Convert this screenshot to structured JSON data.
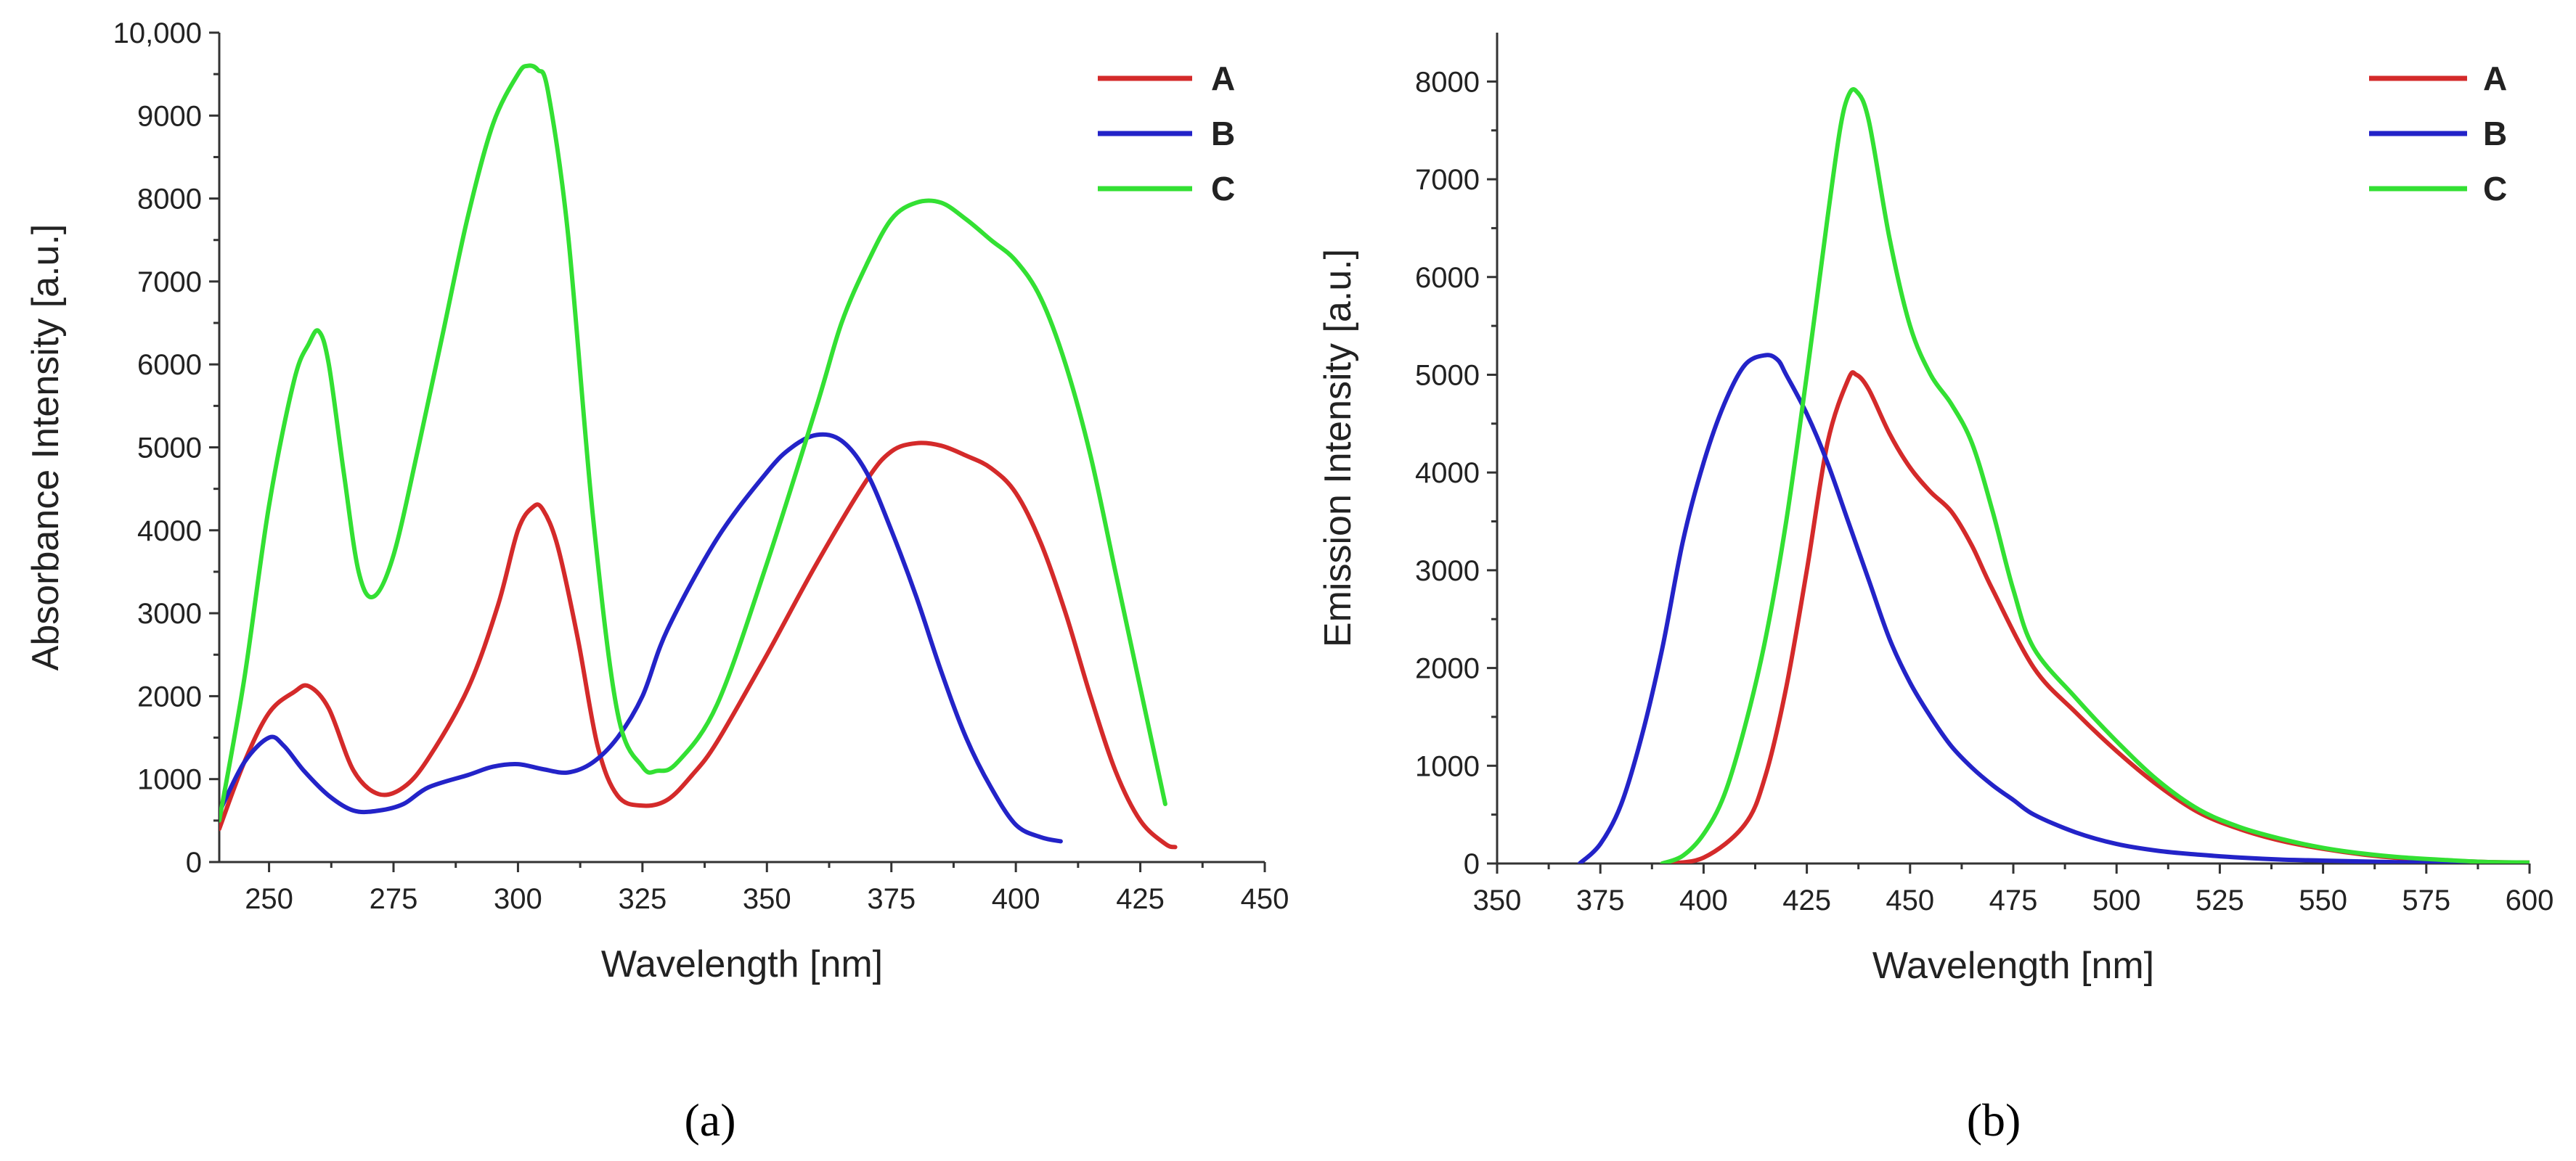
{
  "colors": {
    "A": "#d42a2a",
    "B": "#2323c8",
    "C": "#33e033",
    "axis": "#333333"
  },
  "chart_data": [
    {
      "type": "line",
      "panel": "(a)",
      "xlabel": "Wavelength [nm]",
      "ylabel": "Absorbance Intensity [a.u.]",
      "xlim": [
        240,
        450
      ],
      "ylim": [
        0,
        10000
      ],
      "xticks": [
        250,
        275,
        300,
        325,
        350,
        375,
        400,
        425,
        450
      ],
      "yticks": [
        0,
        1000,
        2000,
        3000,
        4000,
        5000,
        6000,
        7000,
        8000,
        9000,
        10000
      ],
      "ytick_labels": [
        "0",
        "1000",
        "2000",
        "3000",
        "4000",
        "5000",
        "6000",
        "7000",
        "8000",
        "9000",
        "10,000"
      ],
      "legend_position": "top-right",
      "series": [
        {
          "name": "A",
          "color": "#d42a2a",
          "x": [
            240,
            245,
            250,
            255,
            258,
            262,
            267,
            272,
            277,
            282,
            290,
            296,
            300,
            303,
            305,
            308,
            312,
            316,
            320,
            325,
            330,
            335,
            340,
            350,
            360,
            370,
            375,
            380,
            385,
            390,
            395,
            400,
            405,
            410,
            415,
            420,
            425,
            430,
            432
          ],
          "y": [
            400,
            1200,
            1800,
            2050,
            2120,
            1850,
            1100,
            820,
            900,
            1250,
            2100,
            3100,
            4000,
            4280,
            4250,
            3800,
            2700,
            1400,
            800,
            680,
            750,
            1050,
            1450,
            2500,
            3600,
            4600,
            4950,
            5050,
            5020,
            4900,
            4750,
            4450,
            3850,
            3000,
            2000,
            1100,
            500,
            220,
            180
          ]
        },
        {
          "name": "B",
          "color": "#2323c8",
          "x": [
            240,
            245,
            250,
            253,
            257,
            262,
            267,
            272,
            277,
            282,
            290,
            295,
            300,
            305,
            310,
            315,
            320,
            325,
            330,
            340,
            350,
            355,
            360,
            365,
            370,
            375,
            380,
            385,
            390,
            395,
            400,
            405,
            409
          ],
          "y": [
            600,
            1200,
            1500,
            1400,
            1100,
            800,
            620,
            620,
            700,
            900,
            1050,
            1150,
            1180,
            1120,
            1080,
            1200,
            1500,
            2000,
            2800,
            3900,
            4700,
            5000,
            5150,
            5080,
            4700,
            4000,
            3200,
            2300,
            1500,
            900,
            450,
            300,
            250
          ]
        },
        {
          "name": "C",
          "color": "#33e033",
          "x": [
            240,
            245,
            250,
            255,
            258,
            260,
            262,
            265,
            268,
            271,
            275,
            280,
            285,
            290,
            295,
            300,
            302,
            304,
            306,
            310,
            315,
            320,
            325,
            328,
            332,
            340,
            350,
            360,
            365,
            370,
            375,
            380,
            385,
            390,
            395,
            400,
            405,
            410,
            415,
            420,
            425,
            430
          ],
          "y": [
            500,
            2200,
            4300,
            5800,
            6250,
            6400,
            6000,
            4700,
            3500,
            3200,
            3700,
            5000,
            6400,
            7800,
            8900,
            9500,
            9600,
            9550,
            9300,
            7600,
            4200,
            1800,
            1150,
            1100,
            1200,
            1900,
            3600,
            5500,
            6500,
            7200,
            7750,
            7950,
            7950,
            7750,
            7500,
            7250,
            6800,
            6000,
            4900,
            3500,
            2100,
            700
          ]
        }
      ]
    },
    {
      "type": "line",
      "panel": "(b)",
      "xlabel": "Wavelength [nm]",
      "ylabel": "Emission Intensity [a.u.]",
      "xlim": [
        350,
        600
      ],
      "ylim": [
        0,
        8500
      ],
      "xticks": [
        350,
        375,
        400,
        425,
        450,
        475,
        500,
        525,
        550,
        575,
        600
      ],
      "yticks": [
        0,
        1000,
        2000,
        3000,
        4000,
        5000,
        6000,
        7000,
        8000
      ],
      "ytick_labels": [
        "0",
        "1000",
        "2000",
        "3000",
        "4000",
        "5000",
        "6000",
        "7000",
        "8000"
      ],
      "legend_position": "top-right",
      "series": [
        {
          "name": "A",
          "color": "#d42a2a",
          "x": [
            390,
            400,
            410,
            415,
            420,
            425,
            430,
            435,
            437,
            440,
            445,
            450,
            455,
            460,
            465,
            470,
            480,
            490,
            500,
            510,
            520,
            530,
            540,
            550,
            560,
            570,
            580,
            590,
            600
          ],
          "y": [
            0,
            60,
            400,
            900,
            1800,
            3000,
            4300,
            4950,
            5000,
            4850,
            4400,
            4050,
            3800,
            3600,
            3250,
            2800,
            2000,
            1550,
            1150,
            800,
            520,
            350,
            230,
            150,
            90,
            50,
            30,
            15,
            10
          ]
        },
        {
          "name": "B",
          "color": "#2323c8",
          "x": [
            370,
            375,
            380,
            385,
            390,
            395,
            400,
            405,
            410,
            415,
            418,
            420,
            425,
            430,
            435,
            440,
            445,
            450,
            455,
            460,
            465,
            470,
            475,
            480,
            490,
            500,
            510,
            520,
            530,
            540,
            550,
            560,
            570,
            580,
            590,
            600
          ],
          "y": [
            0,
            200,
            600,
            1300,
            2200,
            3300,
            4100,
            4700,
            5100,
            5200,
            5150,
            5000,
            4600,
            4100,
            3500,
            2900,
            2300,
            1850,
            1500,
            1200,
            980,
            800,
            650,
            500,
            320,
            200,
            130,
            90,
            60,
            40,
            30,
            20,
            12,
            8,
            5,
            3
          ]
        },
        {
          "name": "C",
          "color": "#33e033",
          "x": [
            390,
            395,
            400,
            405,
            410,
            415,
            420,
            425,
            430,
            433,
            435,
            437,
            440,
            445,
            450,
            455,
            460,
            465,
            470,
            475,
            480,
            490,
            500,
            510,
            520,
            530,
            540,
            550,
            560,
            570,
            580,
            590,
            600
          ],
          "y": [
            0,
            80,
            300,
            700,
            1400,
            2300,
            3500,
            5000,
            6600,
            7500,
            7850,
            7900,
            7600,
            6400,
            5500,
            5000,
            4700,
            4300,
            3600,
            2800,
            2200,
            1700,
            1250,
            850,
            550,
            370,
            250,
            160,
            100,
            60,
            35,
            15,
            10
          ]
        }
      ]
    }
  ]
}
